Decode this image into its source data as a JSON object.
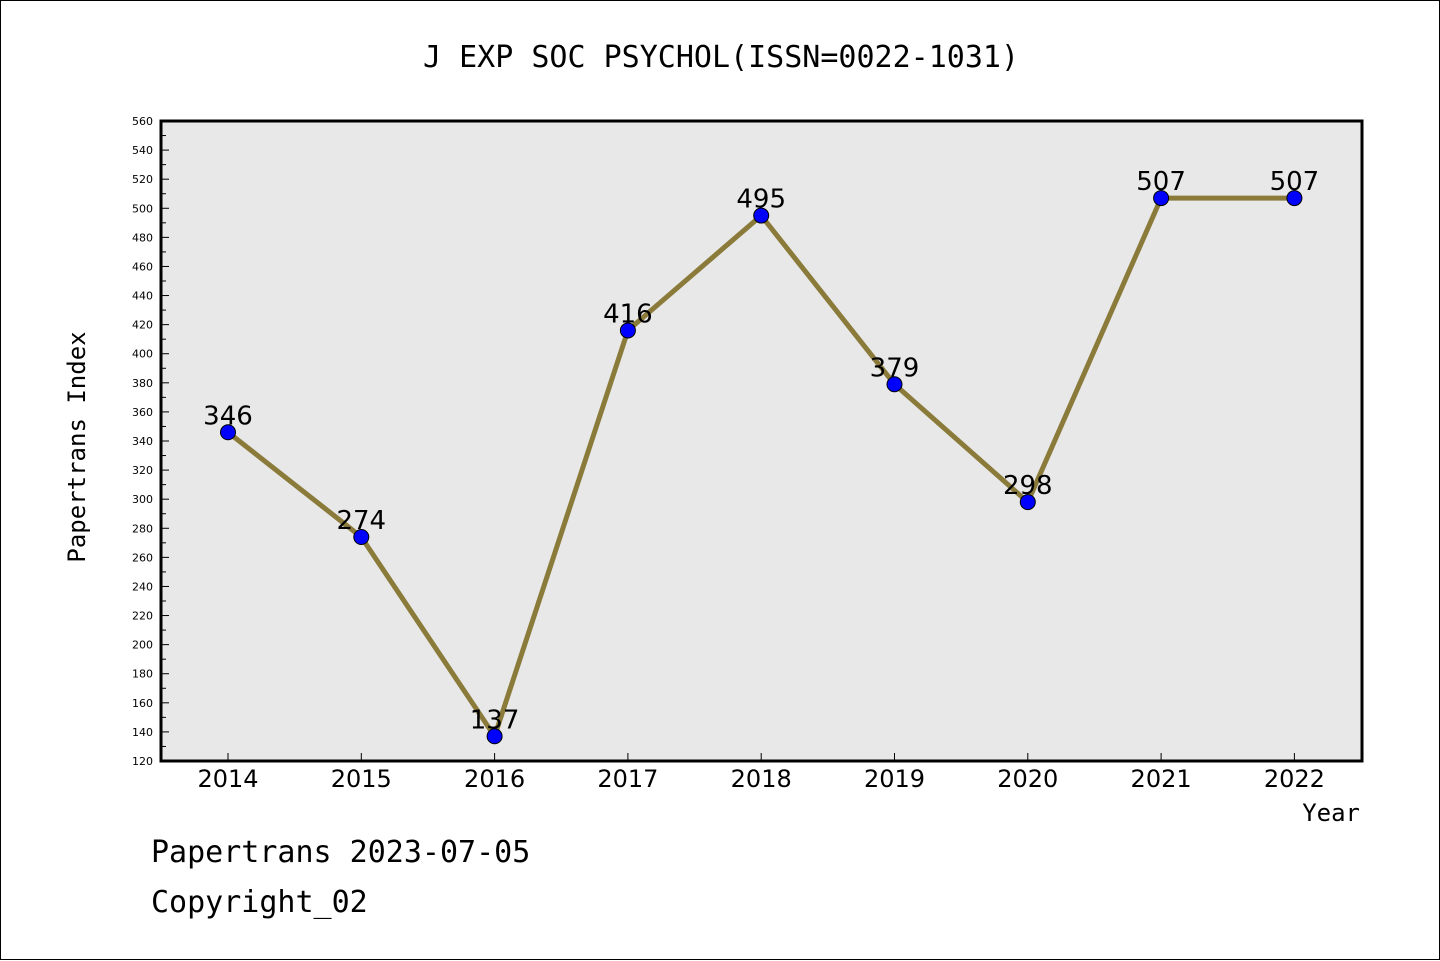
{
  "chart_data": {
    "type": "line",
    "title": "J EXP SOC PSYCHOL(ISSN=0022-1031)",
    "xlabel": "Year",
    "ylabel": "Papertrans Index",
    "categories": [
      "2014",
      "2015",
      "2016",
      "2017",
      "2018",
      "2019",
      "2020",
      "2021",
      "2022"
    ],
    "values": [
      346,
      274,
      137,
      416,
      495,
      379,
      298,
      507,
      507
    ],
    "data_labels": [
      "346",
      "274",
      "137",
      "416",
      "495",
      "379",
      "298",
      "507",
      "507"
    ],
    "ylim": [
      120,
      560
    ],
    "yticks": [
      "120",
      "140",
      "160",
      "180",
      "200",
      "220",
      "240",
      "260",
      "280",
      "300",
      "320",
      "340",
      "360",
      "380",
      "400",
      "420",
      "440",
      "460",
      "480",
      "500",
      "520",
      "540",
      "560"
    ],
    "grid": false,
    "line_color": "#8B7B3A",
    "marker_color": "#0000FF",
    "plot_background": "#E8E8E8"
  },
  "footer": {
    "line1": "Papertrans 2023-07-05",
    "line2": "Copyright_02"
  }
}
